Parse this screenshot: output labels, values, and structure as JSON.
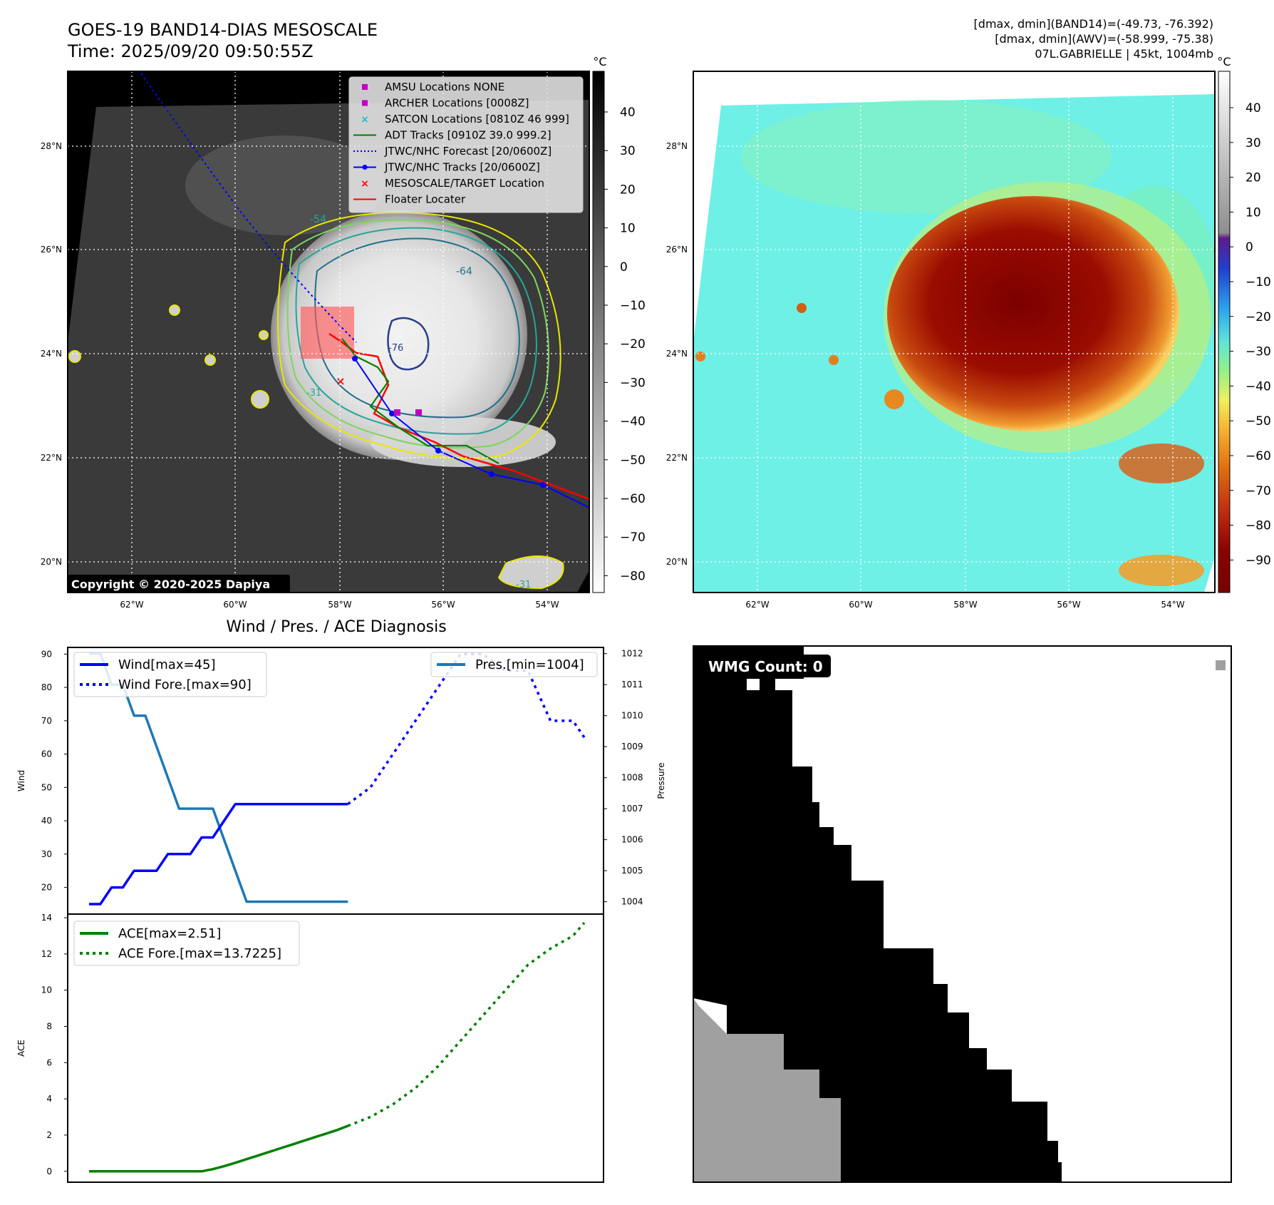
{
  "header": {
    "title_line1": "GOES-19 BAND14-DIAS MESOSCALE",
    "title_line2": "Time: 2025/09/20 09:50:55Z",
    "stats_line1": "[dmax, dmin](BAND14)=(-49.73, -76.392)",
    "stats_line2": "[dmax, dmin](AWV)=(-58.999, -75.38)",
    "stats_line3": "07L.GABRIELLE | 45kt, 1004mb"
  },
  "map_left": {
    "lat_labels": [
      "28°N",
      "26°N",
      "24°N",
      "22°N",
      "20°N"
    ],
    "lon_labels": [
      "62°W",
      "60°W",
      "58°W",
      "56°W",
      "54°W"
    ],
    "contour_labels": [
      "-54",
      "-64",
      "-76",
      "-31",
      "-31"
    ],
    "copyright": "Copyright © 2020-2025 Dapiya",
    "legend": [
      {
        "label": "AMSU Locations NONE",
        "marker": "square",
        "color": "#c000c0"
      },
      {
        "label": "ARCHER Locations [0008Z]",
        "marker": "square",
        "color": "#c000c0"
      },
      {
        "label": "SATCON Locations [0810Z 46 999]",
        "marker": "x",
        "color": "#17becf"
      },
      {
        "label": "ADT Tracks [0910Z 39.0 999.2]",
        "marker": "line",
        "color": "#008000"
      },
      {
        "label": "JTWC/NHC Forecast [20/0600Z]",
        "marker": "dotted",
        "color": "#0000ff"
      },
      {
        "label": "JTWC/NHC Tracks [20/0600Z]",
        "marker": "line-dot",
        "color": "#0000ff"
      },
      {
        "label": "MESOSCALE/TARGET Location",
        "marker": "x",
        "color": "#ff0000"
      },
      {
        "label": "Floater Locater",
        "marker": "line",
        "color": "#ff0000"
      }
    ],
    "colorbar_unit": "°C",
    "colorbar_ticks": [
      "40",
      "30",
      "20",
      "10",
      "0",
      "−10",
      "−20",
      "−30",
      "−40",
      "−50",
      "−60",
      "−70",
      "−80"
    ]
  },
  "map_right": {
    "lat_labels": [
      "28°N",
      "26°N",
      "24°N",
      "22°N",
      "20°N"
    ],
    "lon_labels": [
      "62°W",
      "60°W",
      "58°W",
      "56°W",
      "54°W"
    ],
    "colorbar_unit": "°C",
    "colorbar_ticks": [
      "40",
      "30",
      "20",
      "10",
      "0",
      "−10",
      "−20",
      "−30",
      "−40",
      "−50",
      "−60",
      "−70",
      "−80",
      "−90"
    ]
  },
  "wmg": {
    "label": "WMG Count: 0"
  },
  "chart_data": [
    {
      "type": "line",
      "title": "Wind / Pres. / ACE Diagnosis",
      "ylabel": "Wind",
      "ylabel_right": "Pressure",
      "ylim": [
        12,
        92
      ],
      "ylim_right": [
        1003.6,
        1012.2
      ],
      "y_ticks": [
        20,
        30,
        40,
        50,
        60,
        70,
        80,
        90
      ],
      "y_ticks_right": [
        1004,
        1005,
        1006,
        1007,
        1008,
        1009,
        1010,
        1011,
        1012
      ],
      "series": [
        {
          "name": "Wind[max=45]",
          "color": "#0000ff",
          "style": "solid",
          "values": [
            [
              0,
              15
            ],
            [
              1,
              15
            ],
            [
              2,
              20
            ],
            [
              3,
              20
            ],
            [
              4,
              25
            ],
            [
              5,
              25
            ],
            [
              6,
              25
            ],
            [
              7,
              30
            ],
            [
              8,
              30
            ],
            [
              9,
              30
            ],
            [
              10,
              35
            ],
            [
              11,
              35
            ],
            [
              12,
              40
            ],
            [
              13,
              45
            ],
            [
              14,
              45
            ],
            [
              15,
              45
            ],
            [
              16,
              45
            ],
            [
              17,
              45
            ],
            [
              18,
              45
            ],
            [
              19,
              45
            ],
            [
              20,
              45
            ],
            [
              21,
              45
            ],
            [
              22,
              45
            ],
            [
              23,
              45
            ]
          ]
        },
        {
          "name": "Wind Fore.[max=90]",
          "color": "#0000ff",
          "style": "dotted",
          "values": [
            [
              23,
              45
            ],
            [
              25,
              50
            ],
            [
              27,
              60
            ],
            [
              29,
              70
            ],
            [
              31,
              80
            ],
            [
              33,
              90
            ],
            [
              35,
              90
            ],
            [
              37,
              85
            ],
            [
              39,
              85
            ],
            [
              41,
              70
            ],
            [
              43,
              70
            ],
            [
              44,
              65
            ]
          ]
        },
        {
          "name": "Pres.[min=1004]",
          "color": "#1f77b4",
          "style": "solid",
          "axis": "right",
          "values": [
            [
              0,
              1012
            ],
            [
              1,
              1012
            ],
            [
              2,
              1011
            ],
            [
              3,
              1011
            ],
            [
              4,
              1010
            ],
            [
              5,
              1010
            ],
            [
              6,
              1009
            ],
            [
              7,
              1008
            ],
            [
              8,
              1007
            ],
            [
              9,
              1007
            ],
            [
              10,
              1007
            ],
            [
              11,
              1007
            ],
            [
              12,
              1006
            ],
            [
              13,
              1005
            ],
            [
              14,
              1004
            ],
            [
              15,
              1004
            ],
            [
              16,
              1004
            ],
            [
              17,
              1004
            ],
            [
              18,
              1004
            ],
            [
              19,
              1004
            ],
            [
              20,
              1004
            ],
            [
              21,
              1004
            ],
            [
              22,
              1004
            ],
            [
              23,
              1004
            ]
          ]
        }
      ]
    },
    {
      "type": "line",
      "ylabel": "ACE",
      "ylim": [
        -0.6,
        14.2
      ],
      "y_ticks": [
        0,
        2,
        4,
        6,
        8,
        10,
        12,
        14
      ],
      "series": [
        {
          "name": "ACE[max=2.51]",
          "color": "#008000",
          "style": "solid",
          "values": [
            [
              0,
              0
            ],
            [
              5,
              0
            ],
            [
              10,
              0
            ],
            [
              11,
              0.12
            ],
            [
              12,
              0.28
            ],
            [
              13,
              0.47
            ],
            [
              14,
              0.67
            ],
            [
              15,
              0.87
            ],
            [
              16,
              1.07
            ],
            [
              17,
              1.27
            ],
            [
              18,
              1.47
            ],
            [
              19,
              1.67
            ],
            [
              20,
              1.87
            ],
            [
              21,
              2.07
            ],
            [
              22,
              2.27
            ],
            [
              23,
              2.51
            ]
          ]
        },
        {
          "name": "ACE Fore.[max=13.7225]",
          "color": "#008000",
          "style": "dotted",
          "values": [
            [
              23,
              2.51
            ],
            [
              25,
              3.0
            ],
            [
              27,
              3.7
            ],
            [
              29,
              4.6
            ],
            [
              31,
              5.8
            ],
            [
              33,
              7.2
            ],
            [
              35,
              8.6
            ],
            [
              37,
              10.0
            ],
            [
              39,
              11.4
            ],
            [
              41,
              12.3
            ],
            [
              43,
              13.0
            ],
            [
              44,
              13.72
            ]
          ]
        }
      ]
    }
  ]
}
